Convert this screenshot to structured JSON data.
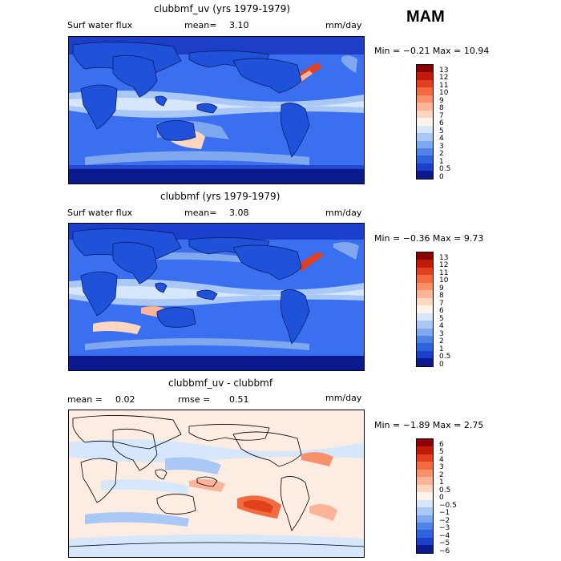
{
  "season": "MAM",
  "panels": [
    {
      "id": "top",
      "title": "clubbmf_uv (yrs 1979-1979)",
      "left_label": "Surf water flux",
      "mean_label": "mean=",
      "mean_value": "3.10",
      "units": "mm/day",
      "minmax": "Min =  −0.21 Max =   10.94",
      "colorbar_labels": [
        "13",
        "12",
        "11",
        "10",
        "9",
        "8",
        "7",
        "6",
        "5",
        "4",
        "3",
        "2",
        "1",
        "0.5",
        "0"
      ],
      "colorbar_colors": [
        "#8b0000",
        "#c21a0a",
        "#e0401e",
        "#f26a40",
        "#f8906a",
        "#fbb497",
        "#fdd6c0",
        "#fff3ea",
        "#d6e6fb",
        "#a9c8f5",
        "#7fa8ee",
        "#4f84e6",
        "#2e63de",
        "#1a3fcc",
        "#0a1a8c"
      ],
      "land": "#1f52d8",
      "ocean": "#3a6ff0"
    },
    {
      "id": "middle",
      "title": "clubbmf (yrs 1979-1979)",
      "left_label": "Surf water flux",
      "mean_label": "mean=",
      "mean_value": "3.08",
      "units": "mm/day",
      "minmax": "Min =  −0.36 Max =    9.73",
      "colorbar_labels": [
        "13",
        "12",
        "11",
        "10",
        "9",
        "8",
        "7",
        "6",
        "5",
        "4",
        "3",
        "2",
        "1",
        "0.5",
        "0"
      ],
      "colorbar_colors": [
        "#8b0000",
        "#c21a0a",
        "#e0401e",
        "#f26a40",
        "#f8906a",
        "#fbb497",
        "#fdd6c0",
        "#fff3ea",
        "#d6e6fb",
        "#a9c8f5",
        "#7fa8ee",
        "#4f84e6",
        "#2e63de",
        "#1a3fcc",
        "#0a1a8c"
      ],
      "land": "#1f52d8",
      "ocean": "#3a6ff0"
    },
    {
      "id": "bottom",
      "title": "clubbmf_uv - clubbmf",
      "left_label": "mean =",
      "left_value": "0.02",
      "mean_label": "rmse =",
      "mean_value": "0.51",
      "units": "mm/day",
      "minmax": "Min =  −1.89 Max =    2.75",
      "colorbar_labels": [
        "6",
        "5",
        "4",
        "3",
        "2",
        "1",
        "0.5",
        "0",
        "−0.5",
        "−1",
        "−2",
        "−3",
        "−4",
        "−5",
        "−6"
      ],
      "colorbar_colors": [
        "#8b0000",
        "#c21a0a",
        "#e0401e",
        "#f26a40",
        "#f8906a",
        "#fbb497",
        "#fdd6c0",
        "#fff3ea",
        "#d6e6fb",
        "#a9c8f5",
        "#7fa8ee",
        "#4f84e6",
        "#2e63de",
        "#1a3fcc",
        "#0a1a8c"
      ],
      "land": "#d6e6fb",
      "ocean": "#fdece2"
    }
  ]
}
